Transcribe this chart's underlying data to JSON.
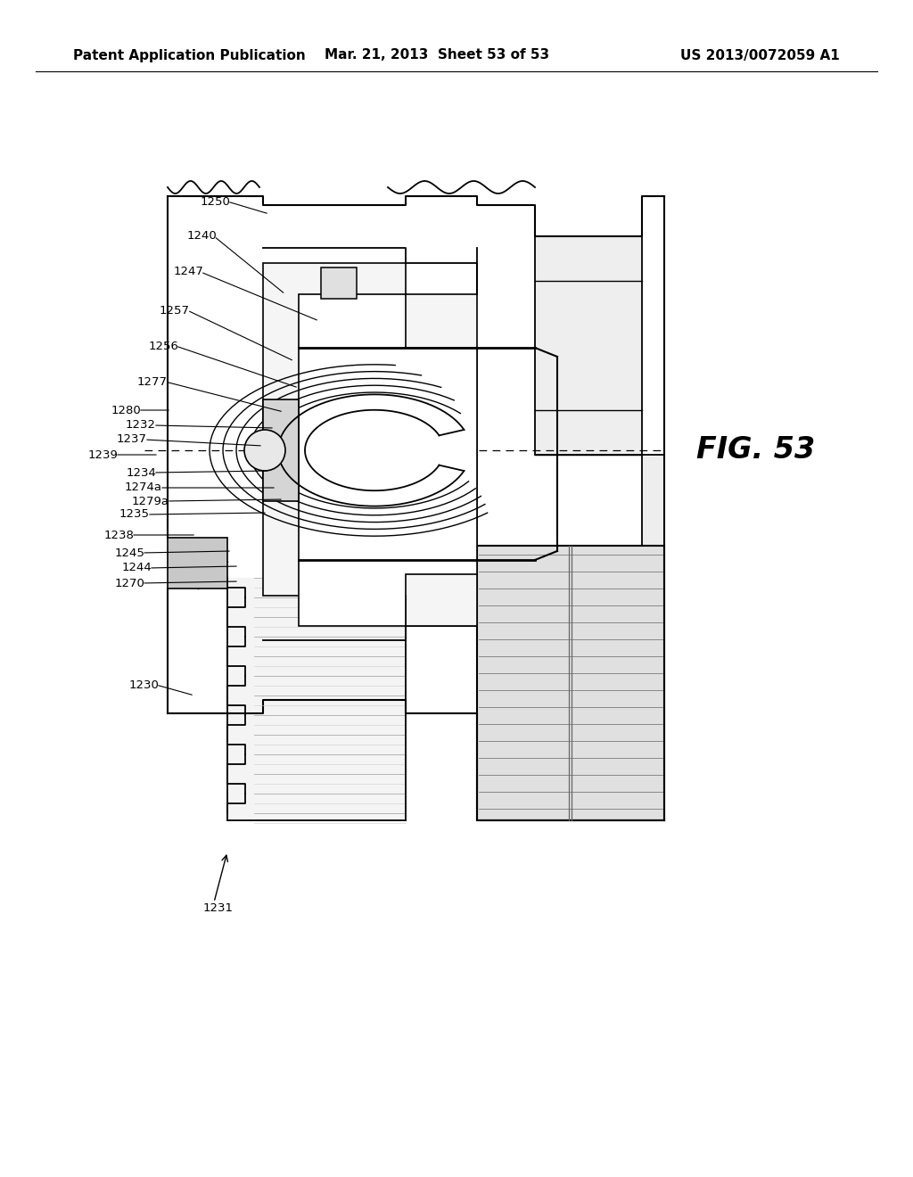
{
  "background_color": "#ffffff",
  "header_left": "Patent Application Publication",
  "header_mid": "Mar. 21, 2013  Sheet 53 of 53",
  "header_right": "US 2013/0072059 A1",
  "figure_label": "FIG. 53",
  "header_fontsize": 11,
  "ref_fontsize": 9.5
}
